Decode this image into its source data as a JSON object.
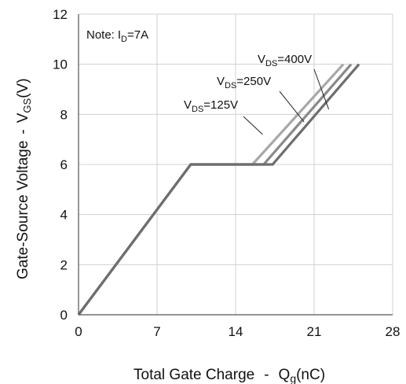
{
  "chart_data": {
    "type": "line",
    "xlabel": {
      "main": "Total Gate Charge",
      "sep": "-",
      "sym": "Q",
      "sub": "g",
      "unit": "(nC)"
    },
    "ylabel": {
      "main": "Gate-Source Voltage",
      "sep": "-",
      "sym": "V",
      "sub": "GS",
      "unit": "(V)"
    },
    "xlim": [
      0,
      28
    ],
    "ylim": [
      0,
      12
    ],
    "x_ticks": [
      0,
      7,
      14,
      21,
      28
    ],
    "y_ticks": [
      0,
      2,
      4,
      6,
      8,
      10,
      12
    ],
    "grid": true,
    "note": {
      "prefix": "Note:",
      "sym": "I",
      "sub": "D",
      "value": "=7A"
    },
    "series": [
      {
        "name": "VDS=125V",
        "label": {
          "sym": "V",
          "sub": "DS",
          "value": "=125V"
        },
        "color": "#a8a8a8",
        "x": [
          0,
          10,
          15.5,
          23.6
        ],
        "y": [
          0,
          6,
          6,
          10
        ]
      },
      {
        "name": "VDS=250V",
        "label": {
          "sym": "V",
          "sub": "DS",
          "value": "=250V"
        },
        "color": "#8a8a8a",
        "x": [
          0,
          10,
          16.5,
          24.3
        ],
        "y": [
          0,
          6,
          6,
          10
        ]
      },
      {
        "name": "VDS=400V",
        "label": {
          "sym": "V",
          "sub": "DS",
          "value": "=400V"
        },
        "color": "#6e6e6e",
        "x": [
          0,
          10,
          17.3,
          25.0
        ],
        "y": [
          0,
          6,
          6,
          10
        ]
      }
    ],
    "annotations": [
      {
        "series": 0,
        "at": [
          16.4,
          7.2
        ]
      },
      {
        "series": 1,
        "at": [
          20.1,
          7.7
        ]
      },
      {
        "series": 2,
        "at": [
          22.3,
          8.2
        ]
      }
    ]
  }
}
